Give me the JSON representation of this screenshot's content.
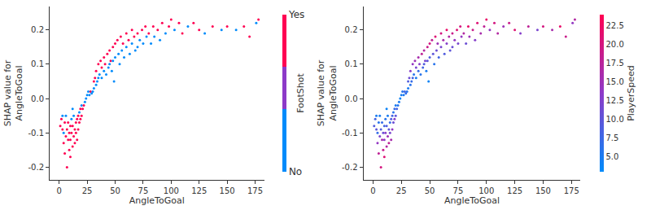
{
  "chart_data": [
    {
      "type": "scatter",
      "x_label": "AngleToGoal",
      "y_label": "SHAP value for\nAngleToGoal",
      "x": [
        2,
        3,
        4,
        5,
        5,
        6,
        6,
        7,
        7,
        8,
        8,
        9,
        9,
        10,
        10,
        11,
        11,
        12,
        12,
        13,
        13,
        14,
        14,
        15,
        15,
        16,
        16,
        17,
        17,
        18,
        18,
        19,
        19,
        20,
        20,
        21,
        22,
        23,
        24,
        1,
        3,
        10,
        4,
        12,
        25,
        26,
        27,
        28,
        29,
        30,
        31,
        31,
        32,
        33,
        33,
        34,
        35,
        35,
        36,
        37,
        38,
        38,
        40,
        40,
        41,
        42,
        43,
        44,
        45,
        45,
        46,
        47,
        48,
        48,
        50,
        50,
        49,
        52,
        53,
        54,
        55,
        56,
        57,
        58,
        60,
        60,
        62,
        63,
        65,
        65,
        67,
        68,
        70,
        70,
        72,
        74,
        75,
        77,
        78,
        80,
        82,
        84,
        85,
        88,
        90,
        92,
        95,
        98,
        100,
        103,
        107,
        110,
        115,
        120,
        125,
        130,
        137,
        145,
        150,
        158,
        165,
        170,
        176,
        178
      ],
      "values": [
        -0.06,
        -0.09,
        -0.13,
        -0.07,
        -0.16,
        -0.11,
        -0.05,
        -0.09,
        -0.2,
        -0.12,
        -0.07,
        -0.1,
        -0.15,
        -0.08,
        -0.12,
        -0.06,
        -0.1,
        -0.14,
        -0.08,
        -0.11,
        -0.05,
        -0.09,
        -0.13,
        -0.07,
        -0.1,
        -0.06,
        -0.12,
        -0.05,
        -0.09,
        -0.04,
        -0.07,
        -0.03,
        -0.06,
        -0.02,
        -0.05,
        -0.03,
        -0.02,
        -0.01,
        0.0,
        -0.08,
        -0.05,
        -0.17,
        -0.1,
        -0.03,
        0.01,
        0.02,
        0.01,
        0.02,
        0.015,
        0.02,
        0.05,
        0.03,
        0.06,
        0.04,
        0.08,
        0.05,
        0.1,
        0.06,
        0.07,
        0.11,
        0.09,
        0.06,
        0.12,
        0.08,
        0.1,
        0.07,
        0.13,
        0.09,
        0.14,
        0.1,
        0.11,
        0.08,
        0.15,
        0.11,
        0.16,
        0.12,
        0.05,
        0.17,
        0.13,
        0.1,
        0.18,
        0.14,
        0.16,
        0.12,
        0.19,
        0.15,
        0.17,
        0.13,
        0.2,
        0.16,
        0.18,
        0.14,
        0.19,
        0.15,
        0.17,
        0.2,
        0.16,
        0.21,
        0.18,
        0.19,
        0.16,
        0.21,
        0.18,
        0.2,
        0.17,
        0.22,
        0.19,
        0.21,
        0.23,
        0.2,
        0.22,
        0.19,
        0.21,
        0.22,
        0.2,
        0.19,
        0.21,
        0.2,
        0.21,
        0.2,
        0.21,
        0.18,
        0.22,
        0.23
      ],
      "color_values": [
        1,
        1,
        1,
        1,
        1,
        1,
        0,
        1,
        1,
        1,
        1,
        1,
        1,
        1,
        1,
        0,
        1,
        1,
        1,
        1,
        0,
        1,
        1,
        1,
        1,
        1,
        1,
        1,
        1,
        0,
        1,
        1,
        1,
        0,
        1,
        1,
        1,
        0,
        0,
        1,
        0,
        1,
        0,
        0,
        0,
        0,
        0,
        1,
        0,
        0,
        1,
        0,
        1,
        0,
        1,
        0,
        1,
        0,
        0,
        1,
        1,
        0,
        1,
        0,
        1,
        0,
        1,
        0,
        1,
        0,
        1,
        0,
        1,
        0,
        1,
        0,
        0,
        1,
        0,
        0,
        1,
        0,
        1,
        0,
        1,
        0,
        1,
        0,
        1,
        0,
        1,
        0,
        1,
        0,
        0,
        1,
        0,
        1,
        0,
        1,
        0,
        1,
        0,
        1,
        0,
        1,
        0,
        1,
        1,
        0,
        1,
        1,
        0,
        1,
        1,
        0,
        1,
        0,
        1,
        0,
        1,
        1,
        0,
        1
      ],
      "color_title": "FootShot",
      "color_range": [
        0,
        1
      ],
      "color_ticks": [
        {
          "value": 1,
          "label": "Yes"
        },
        {
          "value": 0,
          "label": "No"
        }
      ],
      "xlim": [
        -8.5,
        183
      ],
      "xticks": [
        0,
        25,
        50,
        75,
        100,
        125,
        150,
        175
      ],
      "ylim": [
        -0.237,
        0.268
      ],
      "yticks": [
        -0.2,
        -0.1,
        {
          "value": 0,
          "label": "0.0"
        },
        0.1,
        0.2
      ]
    },
    {
      "type": "scatter",
      "x_label": "AngleToGoal",
      "y_label": "SHAP value for\nAngleToGoal",
      "x": [
        2,
        3,
        4,
        5,
        5,
        6,
        6,
        7,
        7,
        8,
        8,
        9,
        9,
        10,
        10,
        11,
        11,
        12,
        12,
        13,
        13,
        14,
        14,
        15,
        15,
        16,
        16,
        17,
        17,
        18,
        18,
        19,
        19,
        20,
        20,
        21,
        22,
        23,
        24,
        1,
        3,
        10,
        4,
        12,
        25,
        26,
        27,
        28,
        29,
        30,
        31,
        31,
        32,
        33,
        33,
        34,
        35,
        35,
        36,
        37,
        38,
        38,
        40,
        40,
        41,
        42,
        43,
        44,
        45,
        45,
        46,
        47,
        48,
        48,
        50,
        50,
        49,
        52,
        53,
        54,
        55,
        56,
        57,
        58,
        60,
        60,
        62,
        63,
        65,
        65,
        67,
        68,
        70,
        70,
        72,
        74,
        75,
        77,
        78,
        80,
        82,
        84,
        85,
        88,
        90,
        92,
        95,
        98,
        100,
        103,
        107,
        110,
        115,
        120,
        125,
        130,
        137,
        145,
        150,
        158,
        165,
        170,
        176,
        178
      ],
      "values": [
        -0.06,
        -0.09,
        -0.13,
        -0.07,
        -0.16,
        -0.11,
        -0.05,
        -0.09,
        -0.2,
        -0.12,
        -0.07,
        -0.1,
        -0.15,
        -0.08,
        -0.12,
        -0.06,
        -0.1,
        -0.14,
        -0.08,
        -0.11,
        -0.05,
        -0.09,
        -0.13,
        -0.07,
        -0.1,
        -0.06,
        -0.12,
        -0.05,
        -0.09,
        -0.04,
        -0.07,
        -0.03,
        -0.06,
        -0.02,
        -0.05,
        -0.03,
        -0.02,
        -0.01,
        0.0,
        -0.08,
        -0.05,
        -0.17,
        -0.1,
        -0.03,
        0.01,
        0.02,
        0.01,
        0.02,
        0.015,
        0.02,
        0.05,
        0.03,
        0.06,
        0.04,
        0.08,
        0.05,
        0.1,
        0.06,
        0.07,
        0.11,
        0.09,
        0.06,
        0.12,
        0.08,
        0.1,
        0.07,
        0.13,
        0.09,
        0.14,
        0.1,
        0.11,
        0.08,
        0.15,
        0.11,
        0.16,
        0.12,
        0.05,
        0.17,
        0.13,
        0.1,
        0.18,
        0.14,
        0.16,
        0.12,
        0.19,
        0.15,
        0.17,
        0.13,
        0.2,
        0.16,
        0.18,
        0.14,
        0.19,
        0.15,
        0.17,
        0.2,
        0.16,
        0.21,
        0.18,
        0.19,
        0.16,
        0.21,
        0.18,
        0.2,
        0.17,
        0.22,
        0.19,
        0.21,
        0.23,
        0.2,
        0.22,
        0.19,
        0.21,
        0.22,
        0.2,
        0.19,
        0.21,
        0.2,
        0.21,
        0.2,
        0.21,
        0.18,
        0.22,
        0.23
      ],
      "color_values": [
        8,
        10,
        14,
        6,
        18,
        12,
        5,
        9,
        20,
        16,
        7,
        11,
        19,
        8,
        14,
        6,
        13,
        17,
        9,
        15,
        5,
        10,
        18,
        7,
        12,
        9,
        16,
        8,
        14,
        6,
        11,
        7,
        13,
        5,
        10,
        8,
        6,
        5,
        4,
        9,
        5,
        21,
        7,
        4,
        5,
        6,
        5,
        8,
        7,
        6,
        9,
        5,
        11,
        6,
        13,
        7,
        14,
        8,
        6,
        15,
        12,
        5,
        16,
        7,
        13,
        6,
        18,
        8,
        17,
        9,
        12,
        5,
        19,
        10,
        20,
        9,
        4,
        18,
        10,
        6,
        21,
        11,
        15,
        8,
        20,
        12,
        16,
        9,
        22,
        13,
        17,
        10,
        19,
        11,
        14,
        21,
        12,
        20,
        14,
        17,
        11,
        22,
        15,
        19,
        13,
        21,
        16,
        18,
        22,
        14,
        20,
        17,
        15,
        19,
        21,
        13,
        18,
        12,
        20,
        16,
        22,
        19,
        14,
        17
      ],
      "color_title": "PlayerSpeed",
      "color_range": [
        3,
        24
      ],
      "color_ticks": [
        {
          "value": 5,
          "label": "5.0"
        },
        7.5,
        {
          "value": 10,
          "label": "10.0"
        },
        12.5,
        {
          "value": 15,
          "label": "15.0"
        },
        17.5,
        {
          "value": 20,
          "label": "20.0"
        },
        22.5
      ],
      "xlim": [
        -8.5,
        183
      ],
      "xticks": [
        0,
        25,
        50,
        75,
        100,
        125,
        150,
        175
      ],
      "ylim": [
        -0.237,
        0.268
      ],
      "yticks": [
        -0.2,
        -0.1,
        {
          "value": 0,
          "label": "0.0"
        },
        0.1,
        0.2
      ]
    }
  ]
}
